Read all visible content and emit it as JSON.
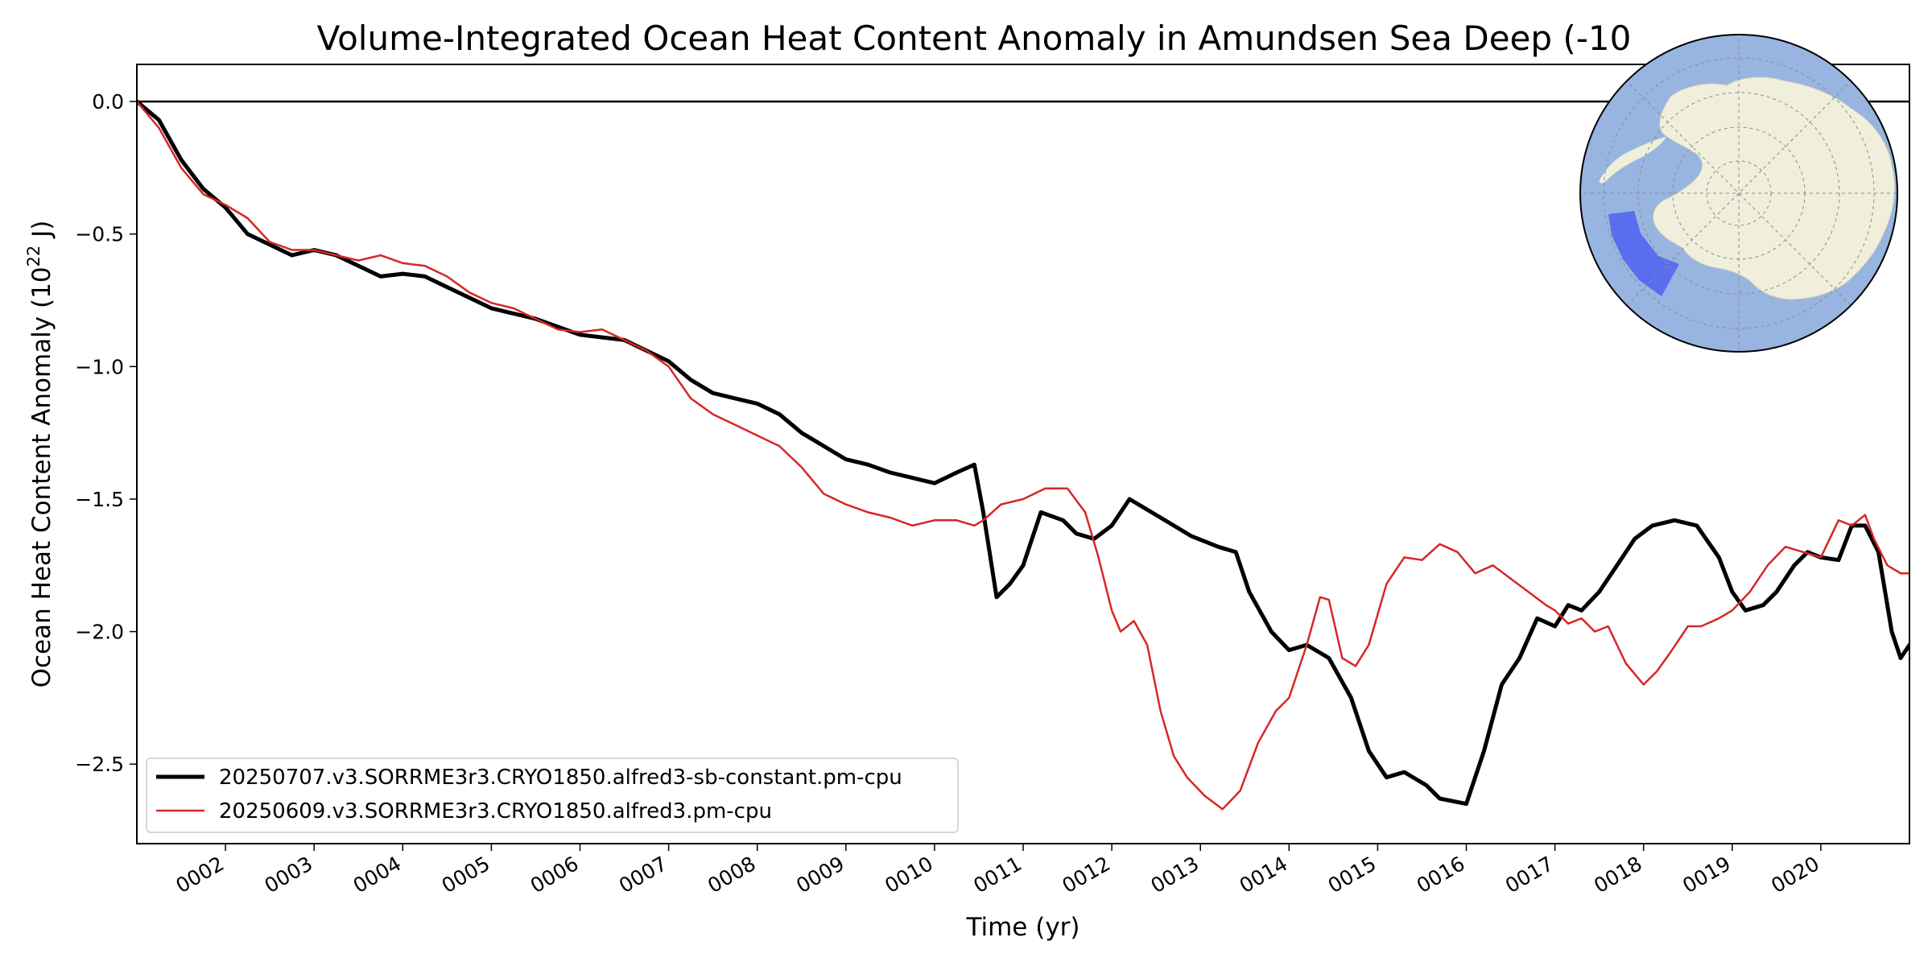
{
  "chart_data": {
    "type": "line",
    "title": "Volume-Integrated Ocean Heat Content Anomaly in Amundsen Sea Deep (-10",
    "xlabel": "Time (yr)",
    "ylabel_main": "Ocean Heat Content Anomaly (10",
    "ylabel_sup": "22",
    "ylabel_end": " J)",
    "xlim": [
      1.0,
      21.0
    ],
    "ylim": [
      -2.8,
      0.14
    ],
    "xticks": [
      2,
      3,
      4,
      5,
      6,
      7,
      8,
      9,
      10,
      11,
      12,
      13,
      14,
      15,
      16,
      17,
      18,
      19,
      20
    ],
    "xtick_labels": [
      "0002",
      "0003",
      "0004",
      "0005",
      "0006",
      "0007",
      "0008",
      "0009",
      "0010",
      "0011",
      "0012",
      "0013",
      "0014",
      "0015",
      "0016",
      "0017",
      "0018",
      "0019",
      "0020"
    ],
    "yticks": [
      0.0,
      -0.5,
      -1.0,
      -1.5,
      -2.0,
      -2.5
    ],
    "ytick_labels": [
      "0.0",
      "−0.5",
      "−1.0",
      "−1.5",
      "−2.0",
      "−2.5"
    ],
    "zero_line": true,
    "grid": false,
    "legend_position": "lower-left",
    "inset_map": "Antarctic polar projection with Amundsen Sea region highlighted",
    "colors": {
      "series1": "#000000",
      "series2": "#d62728",
      "ocean": "#98b4e0",
      "land": "#efefdc",
      "region": "#4a5cf2"
    },
    "series": [
      {
        "name": "20250707.v3.SORRME3r3.CRYO1850.alfred3-sb-constant.pm-cpu",
        "color": "#000000",
        "x": [
          1.0,
          1.25,
          1.5,
          1.75,
          2.0,
          2.25,
          2.5,
          2.75,
          3.0,
          3.25,
          3.5,
          3.75,
          4.0,
          4.25,
          4.5,
          4.75,
          5.0,
          5.25,
          5.5,
          5.75,
          6.0,
          6.25,
          6.5,
          6.75,
          7.0,
          7.25,
          7.5,
          7.75,
          8.0,
          8.25,
          8.5,
          8.75,
          9.0,
          9.25,
          9.5,
          9.75,
          10.0,
          10.25,
          10.45,
          10.55,
          10.7,
          10.85,
          11.0,
          11.2,
          11.45,
          11.6,
          11.8,
          12.0,
          12.2,
          12.45,
          12.7,
          12.9,
          13.2,
          13.4,
          13.55,
          13.8,
          14.0,
          14.2,
          14.45,
          14.7,
          14.9,
          15.1,
          15.3,
          15.55,
          15.7,
          16.0,
          16.2,
          16.4,
          16.6,
          16.8,
          17.0,
          17.15,
          17.3,
          17.5,
          17.7,
          17.9,
          18.1,
          18.35,
          18.6,
          18.85,
          19.0,
          19.15,
          19.35,
          19.5,
          19.7,
          19.85,
          20.0,
          20.2,
          20.35,
          20.5,
          20.65,
          20.8,
          20.9,
          21.0
        ],
        "y": [
          0.0,
          -0.07,
          -0.22,
          -0.33,
          -0.4,
          -0.5,
          -0.54,
          -0.58,
          -0.56,
          -0.58,
          -0.62,
          -0.66,
          -0.65,
          -0.66,
          -0.7,
          -0.74,
          -0.78,
          -0.8,
          -0.82,
          -0.85,
          -0.88,
          -0.89,
          -0.9,
          -0.94,
          -0.98,
          -1.05,
          -1.1,
          -1.12,
          -1.14,
          -1.18,
          -1.25,
          -1.3,
          -1.35,
          -1.37,
          -1.4,
          -1.42,
          -1.44,
          -1.4,
          -1.37,
          -1.55,
          -1.87,
          -1.82,
          -1.75,
          -1.55,
          -1.58,
          -1.63,
          -1.65,
          -1.6,
          -1.5,
          -1.55,
          -1.6,
          -1.64,
          -1.68,
          -1.7,
          -1.85,
          -2.0,
          -2.07,
          -2.05,
          -2.1,
          -2.25,
          -2.45,
          -2.55,
          -2.53,
          -2.58,
          -2.63,
          -2.65,
          -2.45,
          -2.2,
          -2.1,
          -1.95,
          -1.98,
          -1.9,
          -1.92,
          -1.85,
          -1.75,
          -1.65,
          -1.6,
          -1.58,
          -1.6,
          -1.72,
          -1.85,
          -1.92,
          -1.9,
          -1.85,
          -1.75,
          -1.7,
          -1.72,
          -1.73,
          -1.6,
          -1.6,
          -1.7,
          -2.0,
          -2.1,
          -2.05
        ]
      },
      {
        "name": "20250609.v3.SORRME3r3.CRYO1850.alfred3.pm-cpu",
        "color": "#d62728",
        "x": [
          1.0,
          1.25,
          1.5,
          1.75,
          2.0,
          2.25,
          2.5,
          2.75,
          3.0,
          3.25,
          3.5,
          3.75,
          4.0,
          4.25,
          4.5,
          4.75,
          5.0,
          5.25,
          5.5,
          5.75,
          6.0,
          6.25,
          6.5,
          6.75,
          7.0,
          7.25,
          7.5,
          7.75,
          8.0,
          8.25,
          8.5,
          8.75,
          9.0,
          9.25,
          9.5,
          9.75,
          10.0,
          10.25,
          10.45,
          10.55,
          10.75,
          11.0,
          11.25,
          11.5,
          11.7,
          11.85,
          12.0,
          12.1,
          12.25,
          12.4,
          12.55,
          12.7,
          12.85,
          13.05,
          13.25,
          13.45,
          13.65,
          13.85,
          14.0,
          14.2,
          14.35,
          14.45,
          14.6,
          14.75,
          14.9,
          15.1,
          15.3,
          15.5,
          15.7,
          15.9,
          16.1,
          16.3,
          16.5,
          16.7,
          16.9,
          17.0,
          17.15,
          17.3,
          17.45,
          17.6,
          17.8,
          18.0,
          18.15,
          18.3,
          18.5,
          18.65,
          18.85,
          19.0,
          19.2,
          19.4,
          19.6,
          19.8,
          20.0,
          20.2,
          20.35,
          20.5,
          20.6,
          20.75,
          20.9,
          21.0
        ],
        "y": [
          0.0,
          -0.1,
          -0.25,
          -0.35,
          -0.39,
          -0.44,
          -0.53,
          -0.56,
          -0.56,
          -0.58,
          -0.6,
          -0.58,
          -0.61,
          -0.62,
          -0.66,
          -0.72,
          -0.76,
          -0.78,
          -0.82,
          -0.86,
          -0.87,
          -0.86,
          -0.9,
          -0.94,
          -1.0,
          -1.12,
          -1.18,
          -1.22,
          -1.26,
          -1.3,
          -1.38,
          -1.48,
          -1.52,
          -1.55,
          -1.57,
          -1.6,
          -1.58,
          -1.58,
          -1.6,
          -1.58,
          -1.52,
          -1.5,
          -1.46,
          -1.46,
          -1.55,
          -1.72,
          -1.92,
          -2.0,
          -1.96,
          -2.05,
          -2.3,
          -2.47,
          -2.55,
          -2.62,
          -2.67,
          -2.6,
          -2.42,
          -2.3,
          -2.25,
          -2.05,
          -1.87,
          -1.88,
          -2.1,
          -2.13,
          -2.05,
          -1.82,
          -1.72,
          -1.73,
          -1.67,
          -1.7,
          -1.78,
          -1.75,
          -1.8,
          -1.85,
          -1.9,
          -1.92,
          -1.97,
          -1.95,
          -2.0,
          -1.98,
          -2.12,
          -2.2,
          -2.15,
          -2.08,
          -1.98,
          -1.98,
          -1.95,
          -1.92,
          -1.85,
          -1.75,
          -1.68,
          -1.7,
          -1.72,
          -1.58,
          -1.6,
          -1.56,
          -1.65,
          -1.75,
          -1.78,
          -1.78
        ]
      }
    ]
  }
}
